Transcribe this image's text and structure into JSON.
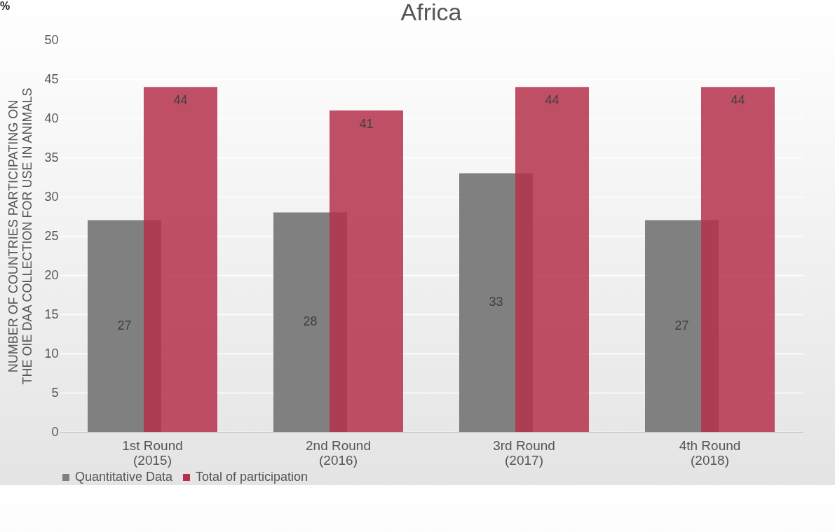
{
  "chart_data": {
    "type": "bar",
    "title": "Africa",
    "ylabel": "NUMBER OF COUNTRIES PARTICIPATING ON THE OIE DAA COLLECTION FOR USE IN ANIMALS",
    "categories": [
      "1st Round\n(2015)",
      "2nd Round\n(2016)",
      "3rd Round\n(2017)",
      "4th Round\n(2018)"
    ],
    "series": [
      {
        "name": "Quantitative Data",
        "color": "#808080",
        "values": [
          27,
          28,
          33,
          27
        ]
      },
      {
        "name": "Total of participation",
        "color": "#b5314b",
        "values": [
          44,
          41,
          44,
          44
        ]
      }
    ],
    "ylim": [
      0,
      50
    ],
    "yticks": [
      0,
      5,
      10,
      15,
      20,
      25,
      30,
      35,
      40,
      45,
      50
    ],
    "grid": "y",
    "legend": "bottom",
    "data_labels": true,
    "annotations": [
      "%"
    ]
  }
}
